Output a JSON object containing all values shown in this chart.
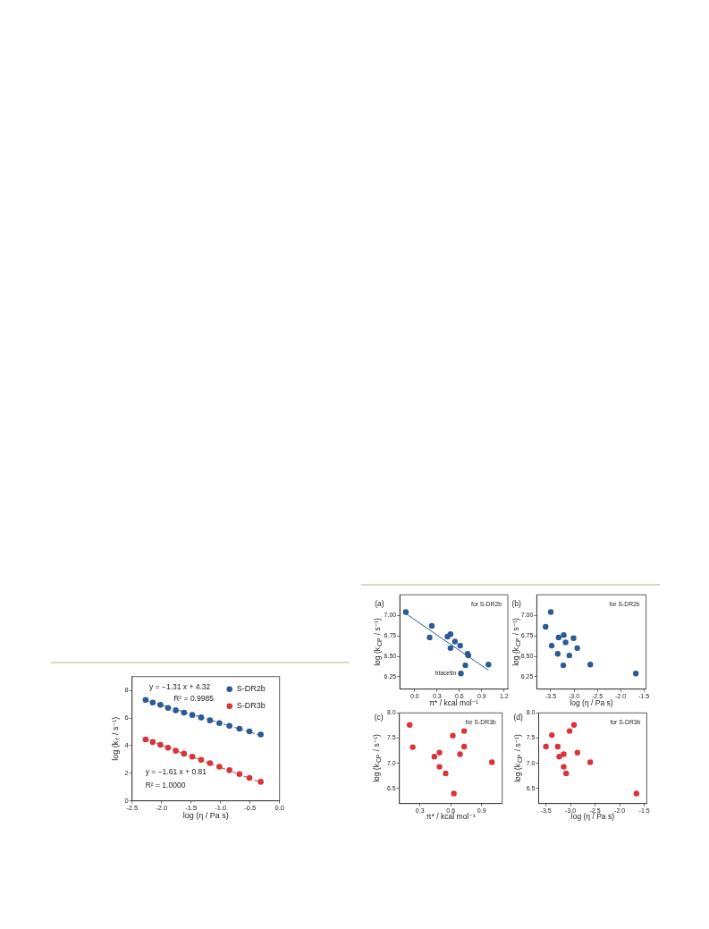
{
  "chart_data": [
    {
      "type": "scatter",
      "xlabel": "log (η / Pa s)",
      "ylabel": "log (k$_{f}$ / s⁻¹)",
      "xlim": [
        -2.5,
        0
      ],
      "ylim": [
        0,
        9
      ],
      "xticks": [
        -2.5,
        {
          "value": -2,
          "label": "-2.0"
        },
        -1.5,
        {
          "value": -1,
          "label": "-1.0"
        },
        -0.5,
        {
          "value": 0,
          "label": "0.0"
        }
      ],
      "yticks": [
        0,
        2,
        4,
        6,
        8
      ],
      "marker": "circle",
      "legend": "top right",
      "annotations": [
        "y = −1.31 x + 4.32",
        "R² = 0.9985",
        "y = −1.61 x + 0.81",
        "R² = 1.0000"
      ],
      "series": [
        {
          "type": "line",
          "color": "#2b5a94",
          "marker": "none",
          "line_style": "dashed",
          "x": [
            -2.27,
            -0.32
          ],
          "values": [
            7.29,
            4.74
          ]
        },
        {
          "type": "line",
          "color": "#d7353b",
          "marker": "none",
          "line_style": "dashed",
          "x": [
            -2.27,
            -0.32
          ],
          "values": [
            4.46,
            1.33
          ]
        },
        {
          "name": "S-DR2b",
          "color": "#2b5a94",
          "x": [
            -2.27,
            -2.15,
            -2.02,
            -1.89,
            -1.76,
            -1.62,
            -1.48,
            -1.33,
            -1.18,
            -1.02,
            -0.85,
            -0.68,
            -0.51,
            -0.32
          ],
          "values": [
            7.31,
            7.12,
            6.95,
            6.73,
            6.56,
            6.39,
            6.22,
            6.04,
            5.83,
            5.63,
            5.44,
            5.23,
            5.03,
            4.8
          ]
        },
        {
          "name": "S-DR3b",
          "color": "#d7353b",
          "x": [
            -2.27,
            -2.15,
            -2.02,
            -1.89,
            -1.76,
            -1.62,
            -1.48,
            -1.33,
            -1.18,
            -1.02,
            -0.85,
            -0.68,
            -0.51,
            -0.32
          ],
          "values": [
            4.45,
            4.26,
            4.06,
            3.85,
            3.63,
            3.42,
            3.2,
            2.97,
            2.73,
            2.47,
            2.22,
            1.94,
            1.66,
            1.38
          ]
        }
      ]
    },
    {
      "type": "scatter",
      "title": "(a)",
      "xlabel": "π* / kcal mol⁻¹",
      "ylabel": "log (k$_{CP}$ / s⁻¹)",
      "xlim": [
        -0.2,
        1.25
      ],
      "ylim": [
        6.1,
        7.25
      ],
      "xticks": [
        {
          "value": 0,
          "label": "0.0"
        },
        0.3,
        0.6,
        0.9,
        1.2
      ],
      "yticks": [
        6.25,
        {
          "value": 6.5,
          "label": "6.50"
        },
        6.75,
        {
          "value": 7,
          "label": "7.00"
        }
      ],
      "marker": "circle",
      "annotations": [
        "for S-DR2b",
        {
          "text": "triacetin",
          "x": 0.62,
          "y": 6.29
        }
      ],
      "series": [
        {
          "type": "line",
          "color": "#2b5a94",
          "marker": "none",
          "line_style": "solid",
          "x": [
            -0.12,
            0.99
          ],
          "values": [
            7.02,
            6.33
          ]
        },
        {
          "color": "#2b5a94",
          "x": [
            -0.12,
            0.2,
            0.23,
            0.44,
            0.48,
            0.48,
            0.54,
            0.61,
            0.71,
            0.72,
            0.68,
            0.62,
            0.99
          ],
          "values": [
            7.04,
            6.73,
            6.87,
            6.74,
            6.77,
            6.6,
            6.68,
            6.63,
            6.53,
            6.51,
            6.39,
            6.29,
            6.4
          ]
        }
      ]
    },
    {
      "type": "scatter",
      "title": "(b)",
      "xlabel": "log (η / Pa s)",
      "ylabel": "log (k$_{CP}$ / s⁻¹)",
      "xlim": [
        -3.8,
        -1.45
      ],
      "ylim": [
        6.1,
        7.25
      ],
      "xticks": [
        -3.5,
        {
          "value": -3,
          "label": "-3.0"
        },
        -2.5,
        {
          "value": -2,
          "label": "-2.0"
        },
        -1.5
      ],
      "yticks": [
        6.25,
        {
          "value": 6.5,
          "label": "6.50"
        },
        6.75,
        {
          "value": 7,
          "label": "7.00"
        }
      ],
      "marker": "circle",
      "annotations": [
        "for S-DR2b"
      ],
      "series": [
        {
          "color": "#2b5a94",
          "x": [
            -3.5,
            -3.61,
            -3.48,
            -3.33,
            -3.22,
            -3.18,
            -3.35,
            -3.01,
            -2.93,
            -3.1,
            -3.23,
            -2.65,
            -1.67
          ],
          "values": [
            7.04,
            6.86,
            6.63,
            6.73,
            6.76,
            6.67,
            6.53,
            6.72,
            6.6,
            6.51,
            6.39,
            6.4,
            6.29
          ]
        }
      ]
    },
    {
      "type": "scatter",
      "title": "(c)",
      "xlabel": "π* / kcal mol⁻¹",
      "ylabel": "log (k$_{CP}$ / s⁻¹)",
      "xlim": [
        0.1,
        1.1
      ],
      "ylim": [
        6.2,
        8
      ],
      "xticks": [
        0.3,
        0.6,
        0.9
      ],
      "yticks": [
        6.5,
        {
          "value": 7,
          "label": "7.0"
        },
        7.5,
        {
          "value": 8,
          "label": "8.0"
        }
      ],
      "marker": "circle",
      "annotations": [
        "for S-DR3b"
      ],
      "series": [
        {
          "color": "#d7353b",
          "x": [
            0.2,
            0.23,
            0.44,
            0.49,
            0.49,
            0.55,
            0.62,
            0.63,
            0.69,
            0.73,
            0.73,
            1.0
          ],
          "values": [
            7.76,
            7.32,
            7.13,
            7.21,
            6.93,
            6.8,
            7.55,
            6.4,
            7.18,
            7.33,
            7.64,
            7.02
          ]
        }
      ]
    },
    {
      "type": "scatter",
      "title": "(d)",
      "xlabel": "log (η / Pa s)",
      "ylabel": "log (k$_{CP}$ / s⁻¹)",
      "xlim": [
        -3.65,
        -1.45
      ],
      "ylim": [
        6.2,
        8
      ],
      "xticks": [
        -3.5,
        {
          "value": -3,
          "label": "-3.0"
        },
        -2.5,
        {
          "value": -2,
          "label": "-2.0"
        },
        -1.5
      ],
      "yticks": [
        6.5,
        {
          "value": 7,
          "label": "7.0"
        },
        7.5,
        {
          "value": 8,
          "label": "8.0"
        }
      ],
      "marker": "circle",
      "annotations": [
        "for S-DR3b"
      ],
      "series": [
        {
          "color": "#d7353b",
          "x": [
            -3.5,
            -3.38,
            -3.26,
            -3.23,
            -3.14,
            -3.14,
            -3.09,
            -3.02,
            -2.93,
            -2.86,
            -2.6,
            -1.66
          ],
          "values": [
            7.33,
            7.56,
            7.33,
            7.13,
            7.18,
            6.93,
            6.8,
            7.64,
            7.76,
            7.21,
            7.02,
            6.4
          ]
        }
      ]
    }
  ]
}
